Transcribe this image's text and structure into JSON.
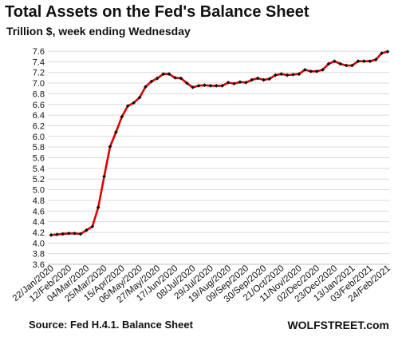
{
  "title": "Total Assets on the Fed's Balance Sheet",
  "subtitle": "Trillion $, week ending Wednesday",
  "source": "Source: Fed H.4.1. Balance Sheet",
  "brand": "WOLFSTREET.com",
  "chart_data": {
    "type": "line",
    "ylim": [
      3.6,
      7.6
    ],
    "yticks": [
      "3.6",
      "3.8",
      "4.0",
      "4.2",
      "4.4",
      "4.6",
      "4.8",
      "5.0",
      "5.2",
      "5.4",
      "5.6",
      "5.8",
      "6.0",
      "6.2",
      "6.4",
      "6.6",
      "6.8",
      "7.0",
      "7.2",
      "7.4",
      "7.6"
    ],
    "grid": true,
    "line_color": "#e00000",
    "marker_color": "#111111",
    "x_tick_labels": [
      "22/Jan/2020",
      "12/Feb/2020",
      "04/Mar/2020",
      "25/Mar/2020",
      "15/Apr/2020",
      "06/May/2020",
      "27/May/2020",
      "17/Jun/2020",
      "08/Jul/2020",
      "29/Jul/2020",
      "19/Aug/2020",
      "09/Sep/2020",
      "30/Sep/2020",
      "21/Oct/2020",
      "11/Nov/2020",
      "02/Dec/2020",
      "23/Dec/2020",
      "13/Jan/2021",
      "03/Feb/2021",
      "24/Feb/2021"
    ],
    "series": [
      {
        "values": [
          4.15,
          4.16,
          4.17,
          4.18,
          4.18,
          4.17,
          4.24,
          4.31,
          4.67,
          5.25,
          5.81,
          6.08,
          6.37,
          6.57,
          6.63,
          6.73,
          6.93,
          7.03,
          7.09,
          7.17,
          7.17,
          7.1,
          7.09,
          7.0,
          6.92,
          6.95,
          6.96,
          6.95,
          6.95,
          6.95,
          7.01,
          6.99,
          7.02,
          7.01,
          7.06,
          7.09,
          7.06,
          7.08,
          7.15,
          7.17,
          7.15,
          7.16,
          7.17,
          7.25,
          7.22,
          7.22,
          7.25,
          7.36,
          7.41,
          7.36,
          7.33,
          7.33,
          7.41,
          7.41,
          7.41,
          7.44,
          7.56,
          7.59
        ]
      }
    ]
  }
}
